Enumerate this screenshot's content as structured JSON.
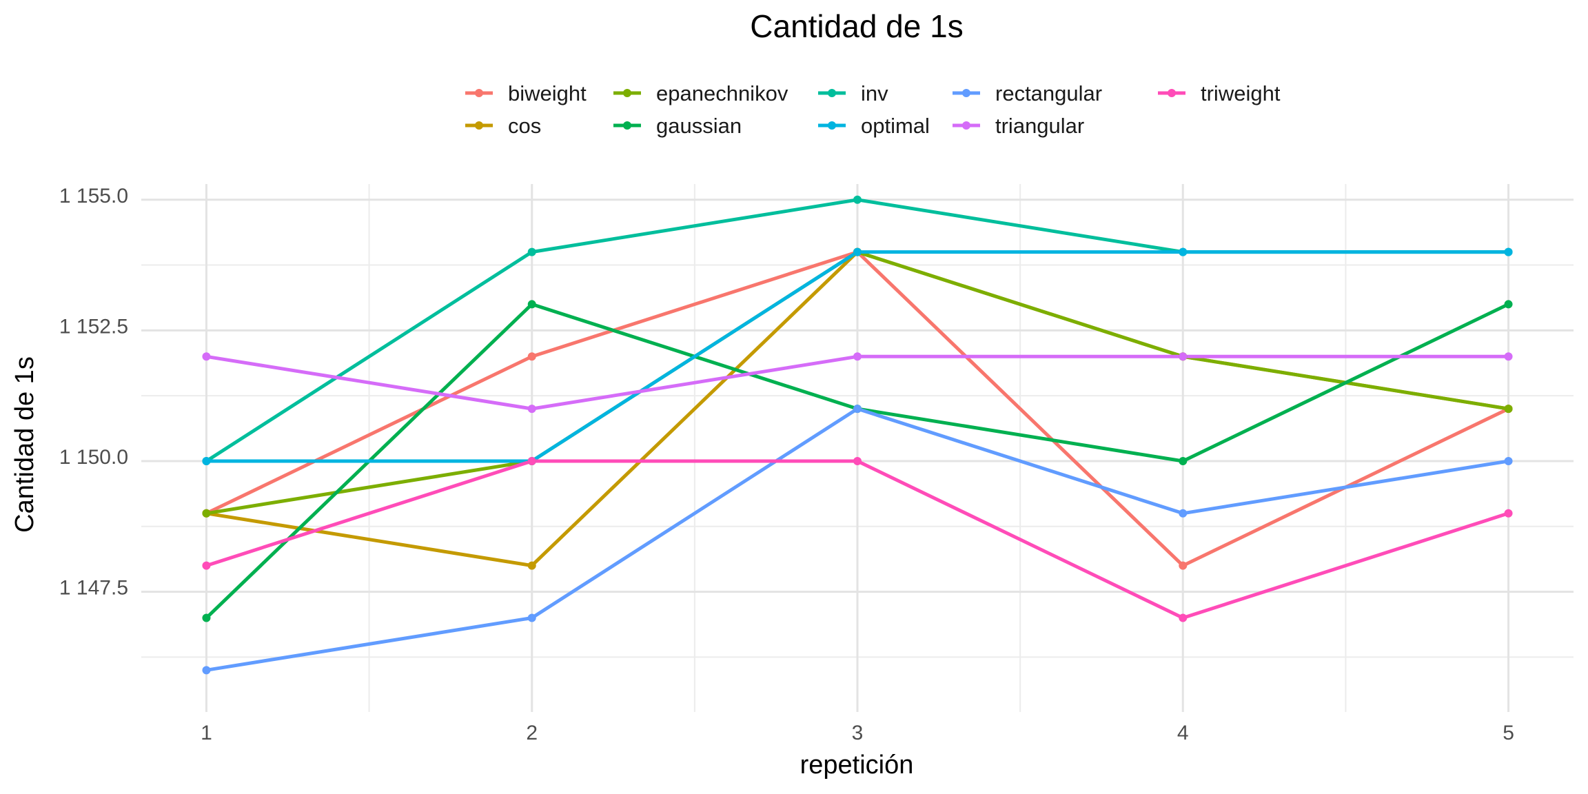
{
  "chart_data": {
    "type": "line",
    "title": "Cantidad de 1s",
    "xlabel": "repetición",
    "ylabel": "Cantidad de 1s",
    "x": [
      1,
      2,
      3,
      4,
      5
    ],
    "x_ticks": [
      "1",
      "2",
      "3",
      "4",
      "5"
    ],
    "xlim": [
      0.8,
      5.2
    ],
    "ylim": [
      1145.2,
      1155.3
    ],
    "y_ticks": [
      {
        "value": 1147.5,
        "label": "1 147.5"
      },
      {
        "value": 1150.0,
        "label": "1 150.0"
      },
      {
        "value": 1152.5,
        "label": "1 152.5"
      },
      {
        "value": 1155.0,
        "label": "1 155.0"
      }
    ],
    "grid": true,
    "legend_position": "top",
    "series": [
      {
        "name": "biweight",
        "color": "#F8766D",
        "values": [
          1149,
          1152,
          1154,
          1148,
          1151
        ]
      },
      {
        "name": "cos",
        "color": "#C49A00",
        "values": [
          1149,
          1148,
          1154,
          1152,
          1151
        ]
      },
      {
        "name": "epanechnikov",
        "color": "#7CAE00",
        "values": [
          1149,
          1150,
          1154,
          1152,
          1151
        ]
      },
      {
        "name": "gaussian",
        "color": "#00B050",
        "values": [
          1147,
          1153,
          1151,
          1150,
          1153
        ]
      },
      {
        "name": "inv",
        "color": "#00BE9C",
        "values": [
          1150,
          1154,
          1155,
          1154,
          1154
        ]
      },
      {
        "name": "optimal",
        "color": "#00B4E0",
        "values": [
          1150,
          1150,
          1154,
          1154,
          1154
        ]
      },
      {
        "name": "rectangular",
        "color": "#619CFF",
        "values": [
          1146,
          1147,
          1151,
          1149,
          1150
        ]
      },
      {
        "name": "triangular",
        "color": "#D56CF8",
        "values": [
          1152,
          1151,
          1152,
          1152,
          1152
        ]
      },
      {
        "name": "triweight",
        "color": "#FF4CB8",
        "values": [
          1148,
          1150,
          1150,
          1147,
          1149
        ]
      }
    ]
  }
}
